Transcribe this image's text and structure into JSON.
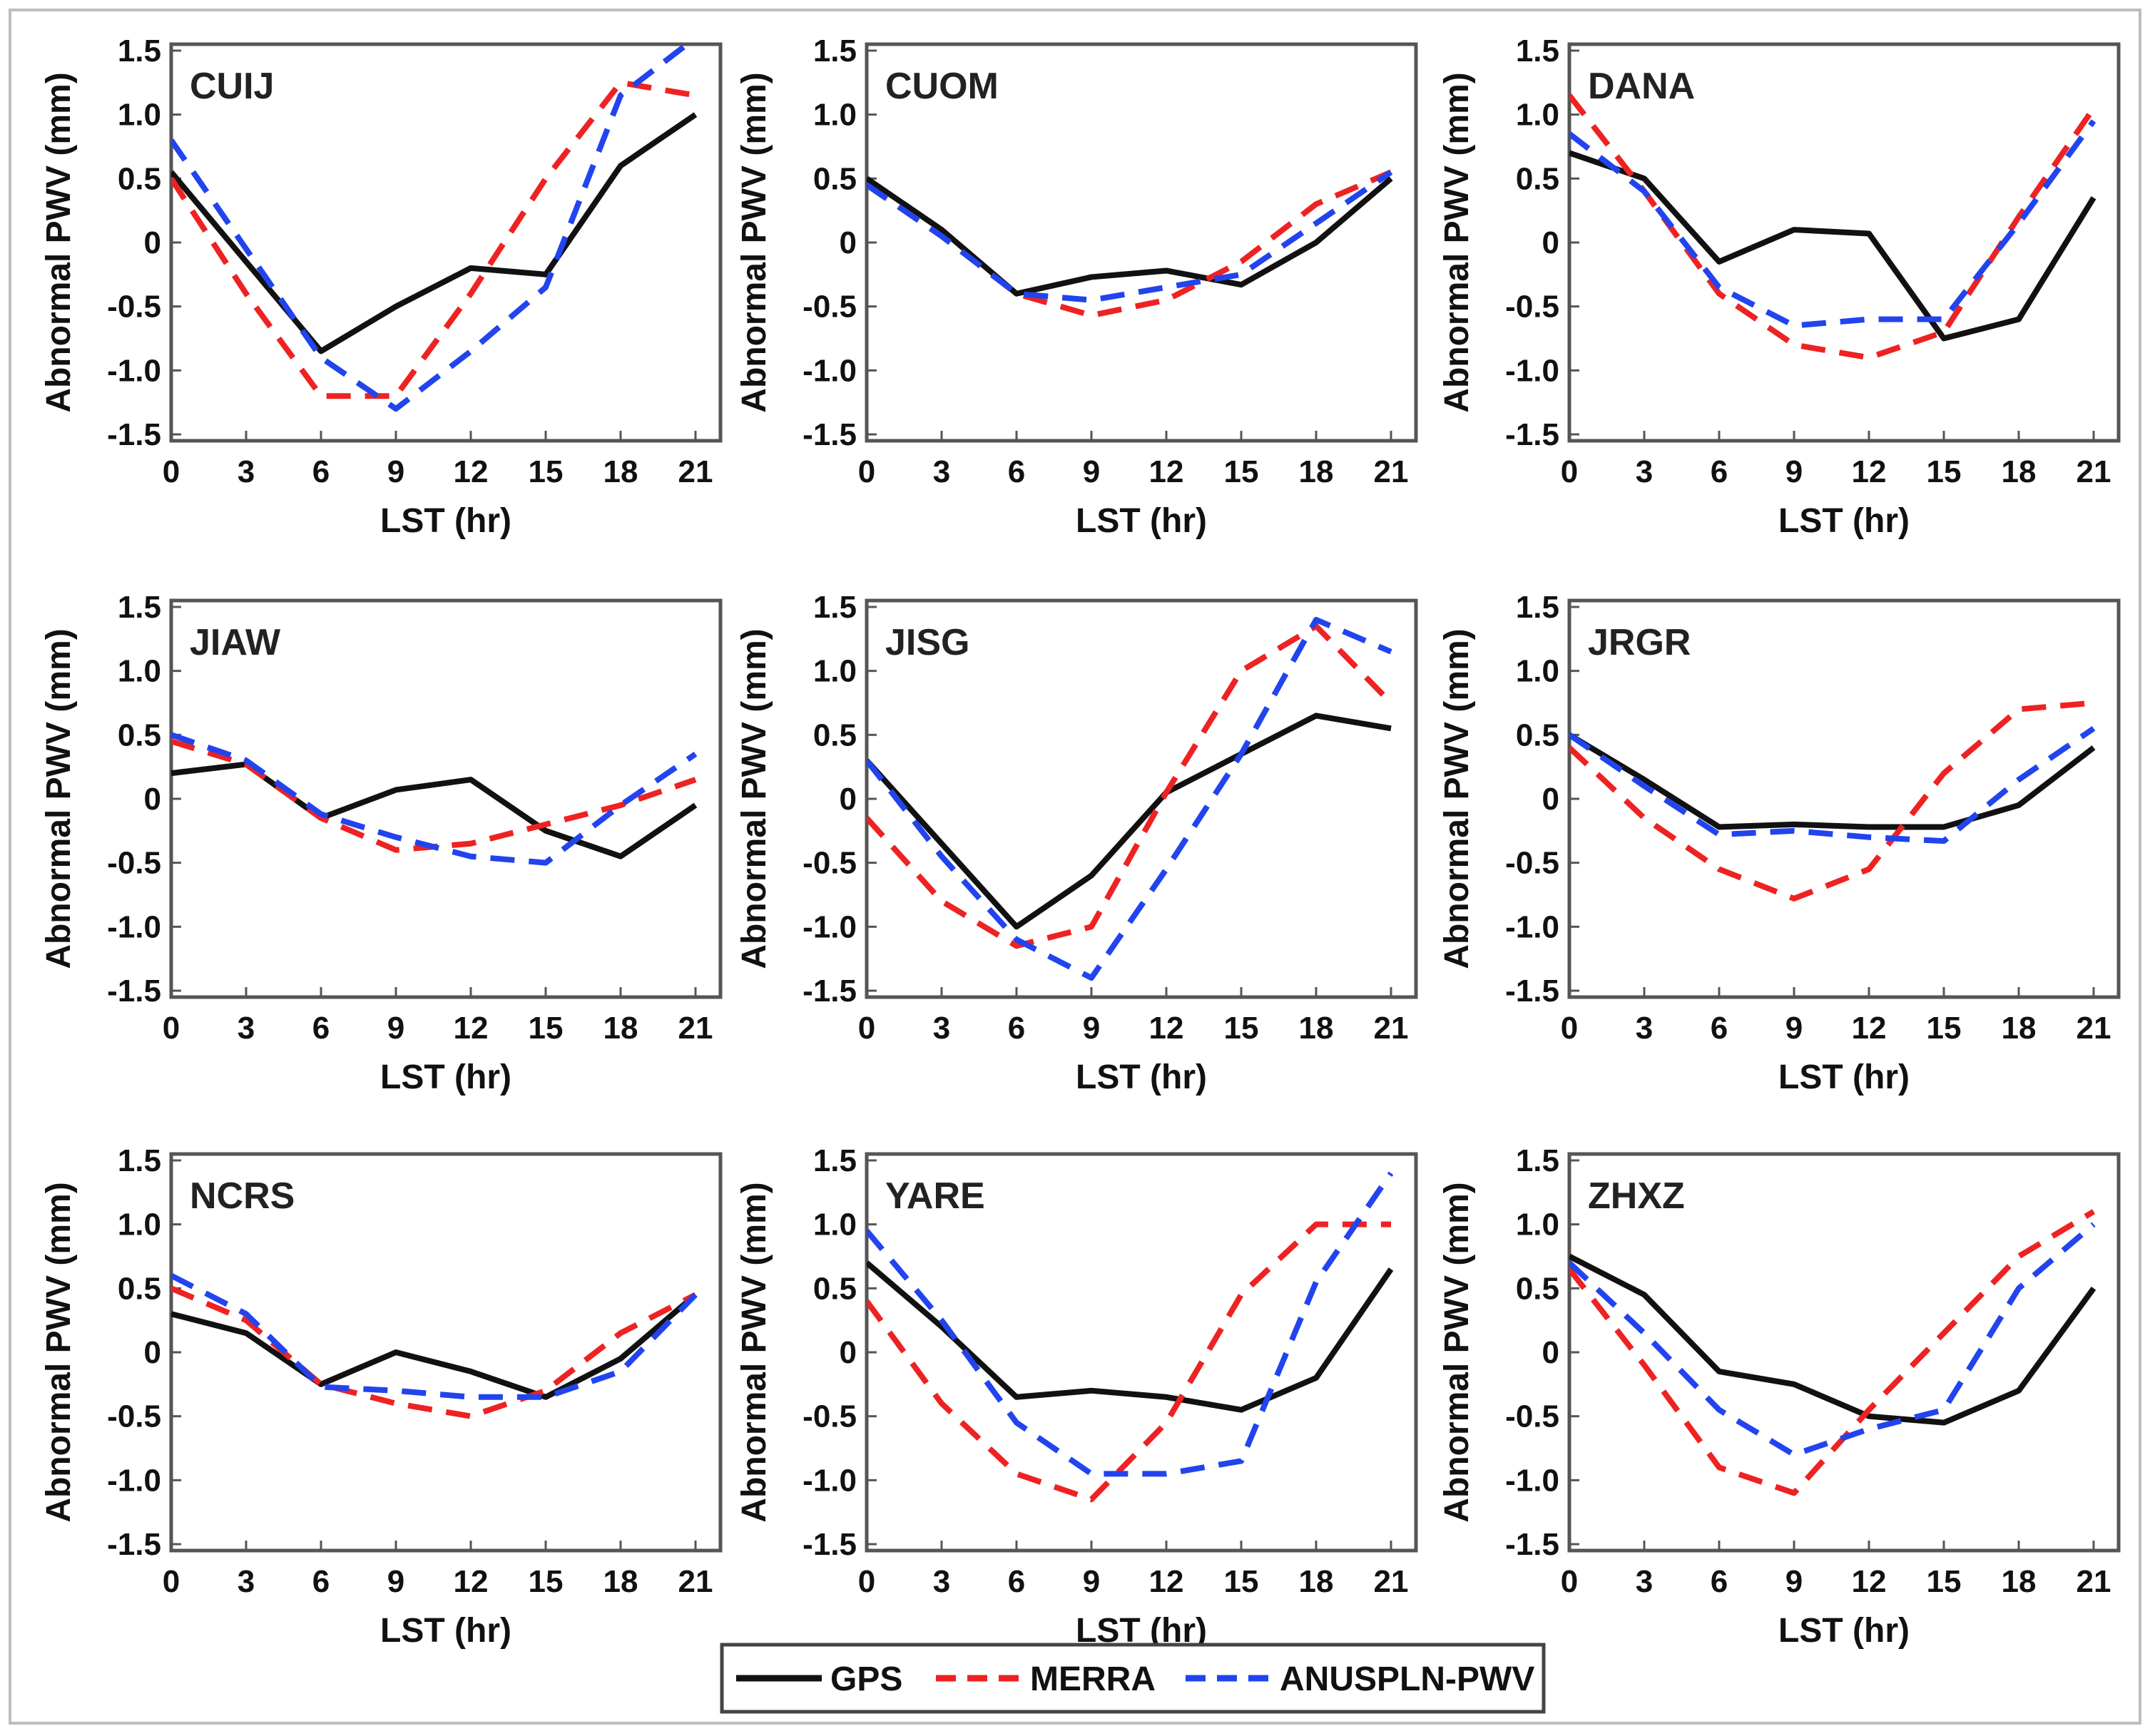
{
  "chart_data": {
    "type": "line",
    "x": [
      0,
      3,
      6,
      9,
      12,
      15,
      18,
      21
    ],
    "xticks": [
      "0",
      "3",
      "6",
      "9",
      "12",
      "15",
      "18",
      "21"
    ],
    "yticks": [
      "1.5",
      "1.0",
      "0.5",
      "0",
      "-0.5",
      "-1.0",
      "-1.5"
    ],
    "ytick_values": [
      1.5,
      1.0,
      0.5,
      0,
      -0.5,
      -1.0,
      -1.5
    ],
    "ylim": [
      -1.55,
      1.55
    ],
    "xlim": [
      0,
      22
    ],
    "xlabel": "LST (hr)",
    "ylabel": "Abnormal PWV (mm)",
    "legend": [
      {
        "name": "GPS",
        "color": "#111111",
        "dash": "solid"
      },
      {
        "name": "MERRA",
        "color": "#ee2222",
        "dash": "dashed"
      },
      {
        "name": "ANUSPLN-PWV",
        "color": "#2244ee",
        "dash": "dashed"
      }
    ],
    "panels": [
      {
        "title": "CUIJ",
        "series": [
          {
            "name": "GPS",
            "values": [
              0.55,
              -0.15,
              -0.85,
              -0.5,
              -0.2,
              -0.25,
              0.6,
              1.0
            ]
          },
          {
            "name": "MERRA",
            "values": [
              0.5,
              -0.4,
              -1.2,
              -1.2,
              -0.4,
              0.5,
              1.25,
              1.15
            ]
          },
          {
            "name": "ANUSPLN-PWV",
            "values": [
              0.8,
              -0.05,
              -0.9,
              -1.3,
              -0.85,
              -0.35,
              1.15,
              1.6
            ]
          }
        ]
      },
      {
        "title": "CUOM",
        "series": [
          {
            "name": "GPS",
            "values": [
              0.5,
              0.1,
              -0.4,
              -0.27,
              -0.22,
              -0.33,
              0.0,
              0.5
            ]
          },
          {
            "name": "MERRA",
            "values": [
              0.45,
              0.05,
              -0.4,
              -0.57,
              -0.45,
              -0.15,
              0.3,
              0.55
            ]
          },
          {
            "name": "ANUSPLN-PWV",
            "values": [
              0.45,
              0.05,
              -0.4,
              -0.45,
              -0.35,
              -0.25,
              0.15,
              0.55
            ]
          }
        ]
      },
      {
        "title": "DANA",
        "series": [
          {
            "name": "GPS",
            "values": [
              0.7,
              0.5,
              -0.15,
              0.1,
              0.07,
              -0.75,
              -0.6,
              0.35
            ]
          },
          {
            "name": "MERRA",
            "values": [
              1.15,
              0.4,
              -0.4,
              -0.8,
              -0.9,
              -0.7,
              0.2,
              1.05
            ]
          },
          {
            "name": "ANUSPLN-PWV",
            "values": [
              0.85,
              0.4,
              -0.35,
              -0.65,
              -0.6,
              -0.6,
              0.15,
              0.95
            ]
          }
        ]
      },
      {
        "title": "JIAW",
        "series": [
          {
            "name": "GPS",
            "values": [
              0.2,
              0.27,
              -0.15,
              0.07,
              0.15,
              -0.25,
              -0.45,
              -0.05
            ]
          },
          {
            "name": "MERRA",
            "values": [
              0.45,
              0.27,
              -0.15,
              -0.4,
              -0.35,
              -0.2,
              -0.05,
              0.15
            ]
          },
          {
            "name": "ANUSPLN-PWV",
            "values": [
              0.5,
              0.3,
              -0.12,
              -0.3,
              -0.45,
              -0.5,
              -0.05,
              0.35
            ]
          }
        ]
      },
      {
        "title": "JISG",
        "series": [
          {
            "name": "GPS",
            "values": [
              0.3,
              -0.35,
              -1.0,
              -0.6,
              0.05,
              0.35,
              0.65,
              0.55
            ]
          },
          {
            "name": "MERRA",
            "values": [
              -0.15,
              -0.8,
              -1.15,
              -1.0,
              0.05,
              1.0,
              1.35,
              0.75
            ]
          },
          {
            "name": "ANUSPLN-PWV",
            "values": [
              0.3,
              -0.45,
              -1.1,
              -1.4,
              -0.55,
              0.35,
              1.4,
              1.15
            ]
          }
        ]
      },
      {
        "title": "JRGR",
        "series": [
          {
            "name": "GPS",
            "values": [
              0.5,
              0.15,
              -0.22,
              -0.2,
              -0.22,
              -0.22,
              -0.05,
              0.4
            ]
          },
          {
            "name": "MERRA",
            "values": [
              0.4,
              -0.15,
              -0.55,
              -0.78,
              -0.55,
              0.2,
              0.7,
              0.75
            ]
          },
          {
            "name": "ANUSPLN-PWV",
            "values": [
              0.5,
              0.1,
              -0.28,
              -0.25,
              -0.3,
              -0.33,
              0.15,
              0.55
            ]
          }
        ]
      },
      {
        "title": "NCRS",
        "series": [
          {
            "name": "GPS",
            "values": [
              0.3,
              0.15,
              -0.25,
              0.0,
              -0.15,
              -0.35,
              -0.05,
              0.45
            ]
          },
          {
            "name": "MERRA",
            "values": [
              0.5,
              0.25,
              -0.25,
              -0.4,
              -0.5,
              -0.3,
              0.15,
              0.45
            ]
          },
          {
            "name": "ANUSPLN-PWV",
            "values": [
              0.6,
              0.3,
              -0.27,
              -0.3,
              -0.35,
              -0.35,
              -0.15,
              0.45
            ]
          }
        ]
      },
      {
        "title": "YARE",
        "series": [
          {
            "name": "GPS",
            "values": [
              0.7,
              0.2,
              -0.35,
              -0.3,
              -0.35,
              -0.45,
              -0.2,
              0.65
            ]
          },
          {
            "name": "MERRA",
            "values": [
              0.4,
              -0.4,
              -0.95,
              -1.15,
              -0.55,
              0.45,
              1.0,
              1.0
            ]
          },
          {
            "name": "ANUSPLN-PWV",
            "values": [
              0.95,
              0.25,
              -0.55,
              -0.95,
              -0.95,
              -0.85,
              0.55,
              1.4
            ]
          }
        ]
      },
      {
        "title": "ZHXZ",
        "series": [
          {
            "name": "GPS",
            "values": [
              0.75,
              0.45,
              -0.15,
              -0.25,
              -0.5,
              -0.55,
              -0.3,
              0.5
            ]
          },
          {
            "name": "MERRA",
            "values": [
              0.65,
              -0.1,
              -0.9,
              -1.1,
              -0.45,
              0.15,
              0.75,
              1.1
            ]
          },
          {
            "name": "ANUSPLN-PWV",
            "values": [
              0.7,
              0.15,
              -0.45,
              -0.8,
              -0.6,
              -0.45,
              0.5,
              1.0
            ]
          }
        ]
      }
    ]
  }
}
